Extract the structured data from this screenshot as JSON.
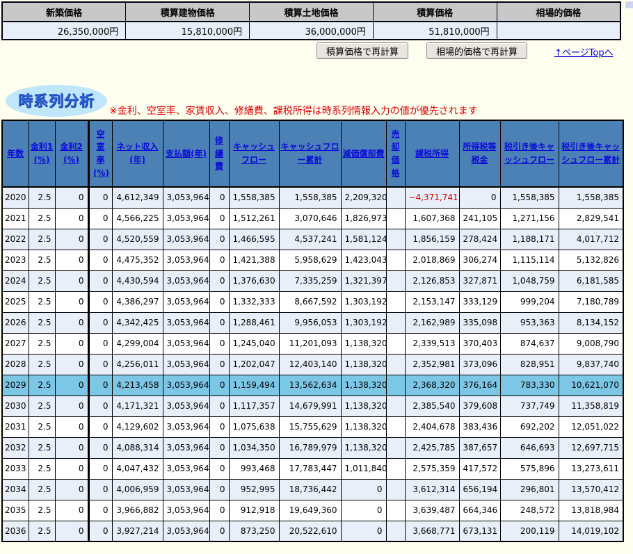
{
  "colors": {
    "page_background": "#fffff0",
    "price_header_bg": "#c8c8c8",
    "price_value_bg": "#e9eff8",
    "ts_header_bg": "#4c81b6",
    "ts_header_link": "#0a0ad8",
    "ts_row_alt_bg": "#e9eff8",
    "ts_row_highlight_bg": "#7cc6e6",
    "negative_value": "#cc0000",
    "note_red": "#dd0000"
  },
  "price_table": {
    "headers": [
      "新築価格",
      "積算建物価格",
      "積算土地価格",
      "積算価格",
      "相場的価格"
    ],
    "values": [
      "26,350,000円",
      "15,810,000円",
      "36,000,000円",
      "51,810,000円",
      ""
    ]
  },
  "actions": {
    "recalc_assessed_label": "積算価格で再計算",
    "recalc_market_label": "相場的価格で再計算",
    "page_top_label": "↑ページTopへ"
  },
  "section": {
    "title": "時系列分析",
    "note": "※金利、空室率、家賃収入、修繕費、課税所得は時系列情報入力の値が優先されます"
  },
  "timeseries": {
    "columns": [
      "年数",
      "金利1(%)",
      "金利2(%)",
      "空室率(%)",
      "ネット収入(年)",
      "支払額(年)",
      "修繕費",
      "キャッシュフロー",
      "キャッシュフロー累計",
      "減価償却費",
      "売却価格",
      "課税所得",
      "所得税等税金",
      "税引き後キャッシュフロー",
      "税引き後キャッシュフロー累計"
    ],
    "highlight_year": "2029",
    "rows": [
      [
        "2020",
        "2.5",
        "0",
        "0",
        "4,612,349",
        "3,053,964",
        "0",
        "1,558,385",
        "1,558,385",
        "2,209,320",
        "",
        "−4,371,741",
        "0",
        "1,558,385",
        "1,558,385"
      ],
      [
        "2021",
        "2.5",
        "0",
        "0",
        "4,566,225",
        "3,053,964",
        "0",
        "1,512,261",
        "3,070,646",
        "1,826,973",
        "",
        "1,607,368",
        "241,105",
        "1,271,156",
        "2,829,541"
      ],
      [
        "2022",
        "2.5",
        "0",
        "0",
        "4,520,559",
        "3,053,964",
        "0",
        "1,466,595",
        "4,537,241",
        "1,581,124",
        "",
        "1,856,159",
        "278,424",
        "1,188,171",
        "4,017,712"
      ],
      [
        "2023",
        "2.5",
        "0",
        "0",
        "4,475,352",
        "3,053,964",
        "0",
        "1,421,388",
        "5,958,629",
        "1,423,043",
        "",
        "2,018,869",
        "306,274",
        "1,115,114",
        "5,132,826"
      ],
      [
        "2024",
        "2.5",
        "0",
        "0",
        "4,430,594",
        "3,053,964",
        "0",
        "1,376,630",
        "7,335,259",
        "1,321,397",
        "",
        "2,126,853",
        "327,871",
        "1,048,759",
        "6,181,585"
      ],
      [
        "2025",
        "2.5",
        "0",
        "0",
        "4,386,297",
        "3,053,964",
        "0",
        "1,332,333",
        "8,667,592",
        "1,303,192",
        "",
        "2,153,147",
        "333,129",
        "999,204",
        "7,180,789"
      ],
      [
        "2026",
        "2.5",
        "0",
        "0",
        "4,342,425",
        "3,053,964",
        "0",
        "1,288,461",
        "9,956,053",
        "1,303,192",
        "",
        "2,162,989",
        "335,098",
        "953,363",
        "8,134,152"
      ],
      [
        "2027",
        "2.5",
        "0",
        "0",
        "4,299,004",
        "3,053,964",
        "0",
        "1,245,040",
        "11,201,093",
        "1,138,320",
        "",
        "2,339,513",
        "370,403",
        "874,637",
        "9,008,790"
      ],
      [
        "2028",
        "2.5",
        "0",
        "0",
        "4,256,011",
        "3,053,964",
        "0",
        "1,202,047",
        "12,403,140",
        "1,138,320",
        "",
        "2,352,981",
        "373,096",
        "828,951",
        "9,837,740"
      ],
      [
        "2029",
        "2.5",
        "0",
        "0",
        "4,213,458",
        "3,053,964",
        "0",
        "1,159,494",
        "13,562,634",
        "1,138,320",
        "",
        "2,368,320",
        "376,164",
        "783,330",
        "10,621,070"
      ],
      [
        "2030",
        "2.5",
        "0",
        "0",
        "4,171,321",
        "3,053,964",
        "0",
        "1,117,357",
        "14,679,991",
        "1,138,320",
        "",
        "2,385,540",
        "379,608",
        "737,749",
        "11,358,819"
      ],
      [
        "2031",
        "2.5",
        "0",
        "0",
        "4,129,602",
        "3,053,964",
        "0",
        "1,075,638",
        "15,755,629",
        "1,138,320",
        "",
        "2,404,678",
        "383,436",
        "692,202",
        "12,051,022"
      ],
      [
        "2032",
        "2.5",
        "0",
        "0",
        "4,088,314",
        "3,053,964",
        "0",
        "1,034,350",
        "16,789,979",
        "1,138,320",
        "",
        "2,425,785",
        "387,657",
        "646,693",
        "12,697,715"
      ],
      [
        "2033",
        "2.5",
        "0",
        "0",
        "4,047,432",
        "3,053,964",
        "0",
        "993,468",
        "17,783,447",
        "1,011,840",
        "",
        "2,575,359",
        "417,572",
        "575,896",
        "13,273,611"
      ],
      [
        "2034",
        "2.5",
        "0",
        "0",
        "4,006,959",
        "3,053,964",
        "0",
        "952,995",
        "18,736,442",
        "0",
        "",
        "3,612,314",
        "656,194",
        "296,801",
        "13,570,412"
      ],
      [
        "2035",
        "2.5",
        "0",
        "0",
        "3,966,882",
        "3,053,964",
        "0",
        "912,918",
        "19,649,360",
        "0",
        "",
        "3,639,487",
        "664,346",
        "248,572",
        "13,818,984"
      ],
      [
        "2036",
        "2.5",
        "0",
        "0",
        "3,927,214",
        "3,053,964",
        "0",
        "873,250",
        "20,522,610",
        "0",
        "",
        "3,668,771",
        "673,131",
        "200,119",
        "14,019,102"
      ]
    ]
  }
}
